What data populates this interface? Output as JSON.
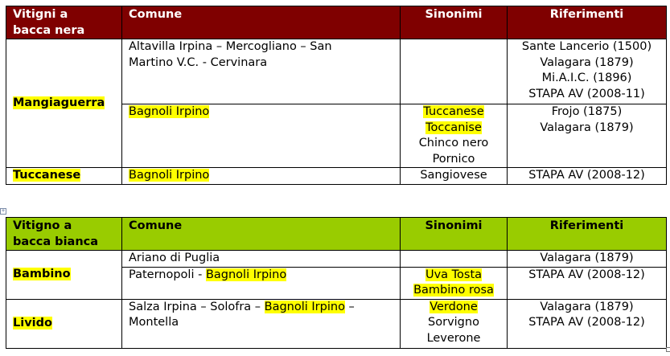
{
  "colors": {
    "header_red": "#7f0000",
    "header_green": "#99cc00",
    "highlight": "#ffff00"
  },
  "tables": [
    {
      "name": "red-grape-table",
      "headers": [
        [
          "Vitigni a",
          "bacca nera"
        ],
        [
          "Comune"
        ],
        [
          "Sinonimi"
        ],
        [
          "Riferimenti"
        ]
      ],
      "rows": [
        {
          "vitigno": "Mangiaguerra",
          "span": 2,
          "height": 81,
          "comune": [
            [
              {
                "t": "Altavilla Irpina – Mercogliano – San",
                "hl": false
              }
            ],
            [
              {
                "t": "Martino V.C. - Cervinara",
                "hl": false
              }
            ]
          ],
          "sinonimi": [],
          "riferimenti": [
            "Sante Lancerio (1500)",
            "Valagara (1879)",
            "Mi.A.I.C. (1896)",
            "STAPA AV (2008-11)"
          ]
        },
        {
          "height": 79,
          "comune": [
            [
              {
                "t": "Bagnoli Irpino",
                "hl": true
              }
            ]
          ],
          "sinonimi": [
            {
              "t": "Tuccanese",
              "hl": true
            },
            {
              "t": "Toccanise",
              "hl": true
            },
            {
              "t": "Chinco nero",
              "hl": false
            },
            {
              "t": "Pornico",
              "hl": false
            }
          ],
          "riferimenti": [
            "Frojo (1875)",
            "Valagara (1879)"
          ]
        },
        {
          "vitigno": "Tuccanese",
          "span": 1,
          "height": 20,
          "comune": [
            [
              {
                "t": "Bagnoli Irpino",
                "hl": true
              }
            ]
          ],
          "sinonimi": [
            {
              "t": "Sangiovese",
              "hl": false
            }
          ],
          "riferimenti": [
            "STAPA AV (2008-12)"
          ]
        }
      ]
    },
    {
      "name": "white-grape-table",
      "headers": [
        [
          "Vitigno a",
          "bacca bianca"
        ],
        [
          "Comune"
        ],
        [
          "Sinonimi"
        ],
        [
          "Riferimenti"
        ]
      ],
      "rows": [
        {
          "vitigno": "Bambino",
          "span": 2,
          "height": 20,
          "comune": [
            [
              {
                "t": "Ariano di Puglia",
                "hl": false
              }
            ]
          ],
          "sinonimi": [],
          "riferimenti": [
            "Valagara (1879)"
          ]
        },
        {
          "height": 40,
          "comune": [
            [
              {
                "t": "Paternopoli - ",
                "hl": false
              },
              {
                "t": "Bagnoli Irpino",
                "hl": true
              }
            ]
          ],
          "sinonimi": [
            {
              "t": "Uva Tosta",
              "hl": true
            },
            {
              "t": "Bambino rosa",
              "hl": true
            }
          ],
          "riferimenti": [
            "STAPA AV (2008-12)"
          ]
        },
        {
          "vitigno": "Livido",
          "span": 1,
          "height": 61,
          "comune": [
            [
              {
                "t": "Salza Irpina – Solofra – ",
                "hl": false
              },
              {
                "t": "Bagnoli Irpino",
                "hl": true
              },
              {
                "t": " –",
                "hl": false
              }
            ],
            [
              {
                "t": "Montella",
                "hl": false
              }
            ]
          ],
          "sinonimi": [
            {
              "t": "Verdone",
              "hl": true
            },
            {
              "t": "Sorvigno",
              "hl": false
            },
            {
              "t": "Leverone",
              "hl": false
            }
          ],
          "riferimenti": [
            "Valagara (1879)",
            "STAPA AV (2008-12)"
          ]
        }
      ]
    }
  ]
}
